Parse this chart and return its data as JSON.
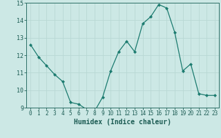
{
  "x": [
    0,
    1,
    2,
    3,
    4,
    5,
    6,
    7,
    8,
    9,
    10,
    11,
    12,
    13,
    14,
    15,
    16,
    17,
    18,
    19,
    20,
    21,
    22,
    23
  ],
  "y": [
    12.6,
    11.9,
    11.4,
    10.9,
    10.5,
    9.3,
    9.2,
    8.9,
    8.8,
    9.6,
    11.1,
    12.2,
    12.8,
    12.2,
    13.8,
    14.2,
    14.9,
    14.7,
    13.3,
    11.1,
    11.5,
    9.8,
    9.7,
    9.7
  ],
  "line_color": "#1a7a6e",
  "marker": "D",
  "marker_size": 2.2,
  "bg_color": "#cce8e5",
  "grid_color": "#b8d8d4",
  "xlabel": "Humidex (Indice chaleur)",
  "ylim": [
    9,
    15
  ],
  "xlim": [
    -0.5,
    23.5
  ],
  "yticks": [
    9,
    10,
    11,
    12,
    13,
    14,
    15
  ],
  "xticks": [
    0,
    1,
    2,
    3,
    4,
    5,
    6,
    7,
    8,
    9,
    10,
    11,
    12,
    13,
    14,
    15,
    16,
    17,
    18,
    19,
    20,
    21,
    22,
    23
  ],
  "axis_color": "#2a6e65",
  "font_color": "#1a5a52",
  "tick_fontsize": 5.5,
  "xlabel_fontsize": 7.0
}
